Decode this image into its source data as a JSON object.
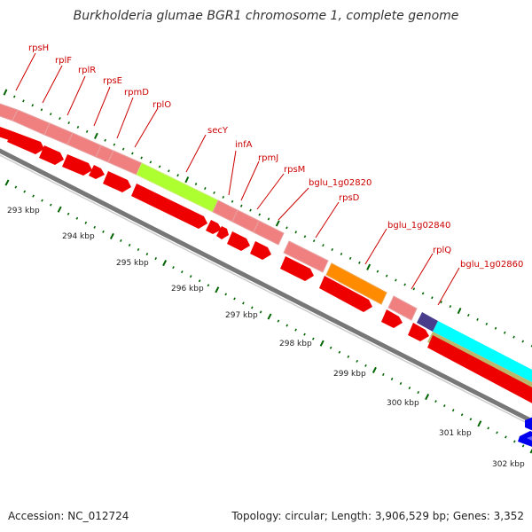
{
  "title": "Burkholderia glumae BGR1 chromosome 1, complete genome",
  "footer": {
    "accession": "Accession: NC_012724",
    "topology": "Topology: circular; Length: 3,906,529 bp; Genes: 3,352"
  },
  "gene_labels": [
    {
      "id": "rpsH",
      "text": "rpsH"
    },
    {
      "id": "rplF",
      "text": "rplF"
    },
    {
      "id": "rplR",
      "text": "rplR"
    },
    {
      "id": "rpsE",
      "text": "rpsE"
    },
    {
      "id": "rpmD",
      "text": "rpmD"
    },
    {
      "id": "rplO",
      "text": "rplO"
    },
    {
      "id": "secY",
      "text": "secY"
    },
    {
      "id": "infA",
      "text": "infA"
    },
    {
      "id": "rpmJ",
      "text": "rpmJ"
    },
    {
      "id": "rpsM",
      "text": "rpsM"
    },
    {
      "id": "bglu_1g02820",
      "text": "bglu_1g02820"
    },
    {
      "id": "rpsD",
      "text": "rpsD"
    },
    {
      "id": "bglu_1g02840",
      "text": "bglu_1g02840"
    },
    {
      "id": "rplQ",
      "text": "rplQ"
    },
    {
      "id": "bglu_1g02860",
      "text": "bglu_1g02860"
    }
  ],
  "kbp_labels": [
    "293 kbp",
    "294 kbp",
    "295 kbp",
    "296 kbp",
    "297 kbp",
    "298 kbp",
    "299 kbp",
    "300 kbp",
    "301 kbp",
    "302 kbp"
  ],
  "colors": {
    "ribosomal": "#f08080",
    "secY": "#adff2f",
    "orange": "#ff8c00",
    "cds": "#ee0000",
    "purple": "#483d8b",
    "cyan": "#00ffff",
    "khaki": "#bdb76b",
    "blue": "#0000ee",
    "backbone": "#777777",
    "tick": "#006400",
    "label": "#cc0000"
  }
}
